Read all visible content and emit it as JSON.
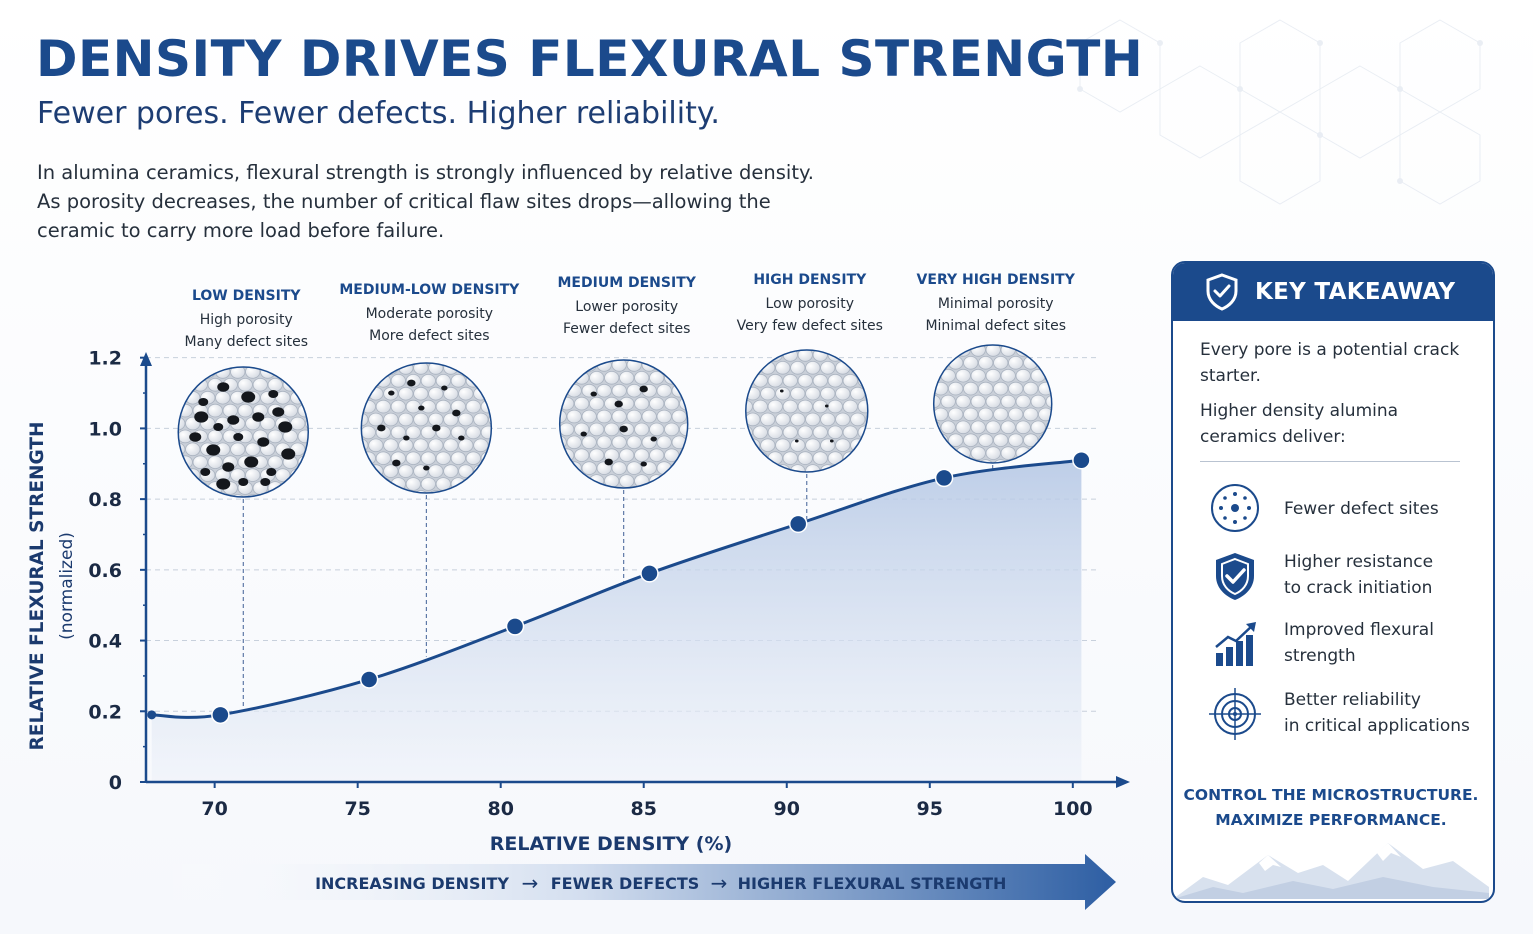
{
  "header": {
    "title": "DENSITY DRIVES FLEXURAL STRENGTH",
    "subtitle": "Fewer pores. Fewer defects. Higher reliability.",
    "intro_lines": [
      "In alumina ceramics, flexural strength is strongly influenced by relative density.",
      "As porosity decreases, the number of critical flaw sites drops—allowing the",
      "ceramic to carry more load before failure."
    ]
  },
  "chart_data": {
    "type": "area",
    "xlabel": "RELATIVE DENSITY (%)",
    "ylabel": "RELATIVE FLEXURAL STRENGTH",
    "ylabel_sub": "(normalized)",
    "x_ticks": [
      "70",
      "75",
      "80",
      "85",
      "90",
      "95",
      "100"
    ],
    "y_ticks": [
      "0",
      "0.2",
      "0.4",
      "0.6",
      "0.8",
      "1.0",
      "1.2"
    ],
    "xlim": [
      67.6,
      101.3
    ],
    "ylim": [
      0,
      1.25
    ],
    "grid": "horizontal dashed",
    "series": [
      {
        "x": [
          67.8,
          70.2,
          75.4,
          80.5,
          85.2,
          90.4,
          95.5,
          100.3
        ],
        "y": [
          0.19,
          0.19,
          0.29,
          0.44,
          0.59,
          0.73,
          0.86,
          0.91
        ],
        "color": "#1b4a8c"
      }
    ],
    "microstructures": [
      {
        "title": "LOW DENSITY",
        "line1": "High porosity",
        "line2": "Many defect sites",
        "x": 71.0,
        "pores": 22
      },
      {
        "title": "MEDIUM-LOW DENSITY",
        "line1": "Moderate porosity",
        "line2": "More defect sites",
        "x": 77.4,
        "pores": 11
      },
      {
        "title": "MEDIUM DENSITY",
        "line1": "Lower porosity",
        "line2": "Fewer defect sites",
        "x": 84.3,
        "pores": 8
      },
      {
        "title": "HIGH DENSITY",
        "line1": "Low porosity",
        "line2": "Very few defect sites",
        "x": 90.7,
        "pores": 4
      },
      {
        "title": "VERY HIGH DENSITY",
        "line1": "Minimal porosity",
        "line2": "Minimal defect sites",
        "x": 97.2,
        "pores": 0
      }
    ],
    "banner": {
      "steps": [
        "INCREASING DENSITY",
        "FEWER DEFECTS",
        "HIGHER FLEXURAL STRENGTH"
      ],
      "separator": "→"
    }
  },
  "takeaway": {
    "title": "KEY TAKEAWAY",
    "intro1": "Every pore is a potential crack starter.",
    "intro2": "Higher density alumina ceramics deliver:",
    "items": [
      {
        "icon": "defect-sites-icon",
        "line1": "Fewer defect sites",
        "line2": ""
      },
      {
        "icon": "shield-check-icon",
        "line1": "Higher resistance",
        "line2": "to crack initiation"
      },
      {
        "icon": "growth-chart-icon",
        "line1": "Improved flexural",
        "line2": "strength"
      },
      {
        "icon": "target-icon",
        "line1": "Better reliability",
        "line2": "in critical applications"
      }
    ],
    "footer1": "CONTROL THE MICROSTRUCTURE.",
    "footer2": "MAXIMIZE PERFORMANCE."
  },
  "colors": {
    "primary": "#1b4a8c",
    "primary_dark": "#1d3d73",
    "area_fill": "#c9d7ec",
    "grid": "#c8d0dc"
  }
}
